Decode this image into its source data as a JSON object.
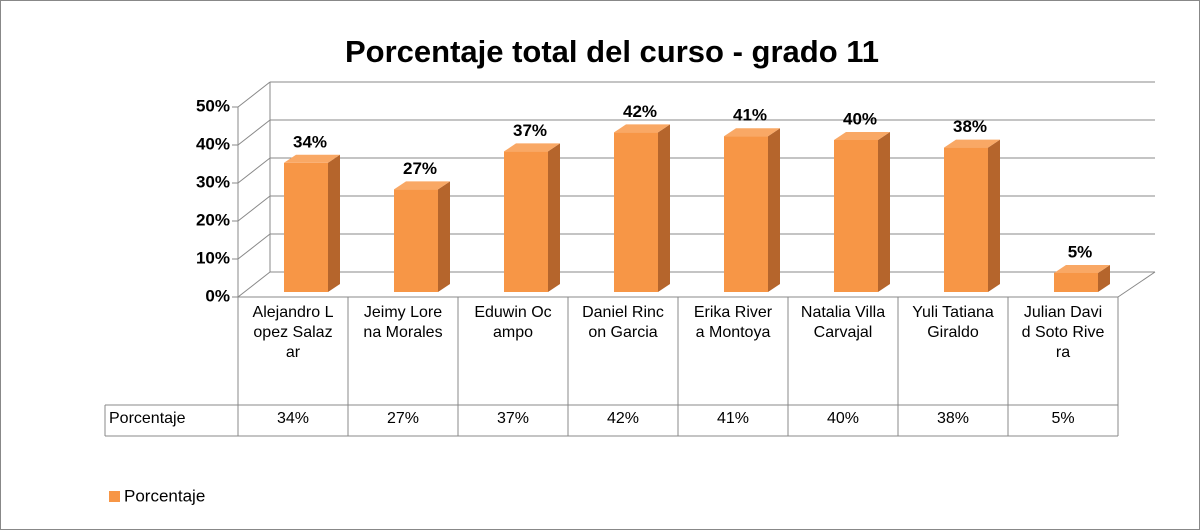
{
  "chart_data": {
    "type": "bar",
    "title": "Porcentaje total del curso - grado 11",
    "categories": [
      "Alejandro Lopez Salazar",
      "Jeimy Lorena Morales",
      "Eduwin Ocampo",
      "Daniel Rincon Garcia",
      "Erika Rivera Montoya",
      "Natalia Villa Carvajal",
      "Yuli Tatiana Giraldo",
      "Julian David Soto Rivera"
    ],
    "series": [
      {
        "name": "Porcentaje",
        "color": "#f79646",
        "values": [
          34,
          27,
          37,
          42,
          41,
          40,
          38,
          5
        ],
        "value_labels": [
          "34%",
          "27%",
          "37%",
          "42%",
          "41%",
          "40%",
          "38%",
          "5%"
        ]
      }
    ],
    "ylim": [
      0,
      50
    ],
    "yticks": [
      {
        "value": 0,
        "label": "0%"
      },
      {
        "value": 10,
        "label": "10%"
      },
      {
        "value": 20,
        "label": "20%"
      },
      {
        "value": 30,
        "label": "30%"
      },
      {
        "value": 40,
        "label": "40%"
      },
      {
        "value": 50,
        "label": "50%"
      }
    ],
    "grid": true,
    "legend": "bottom-left"
  }
}
